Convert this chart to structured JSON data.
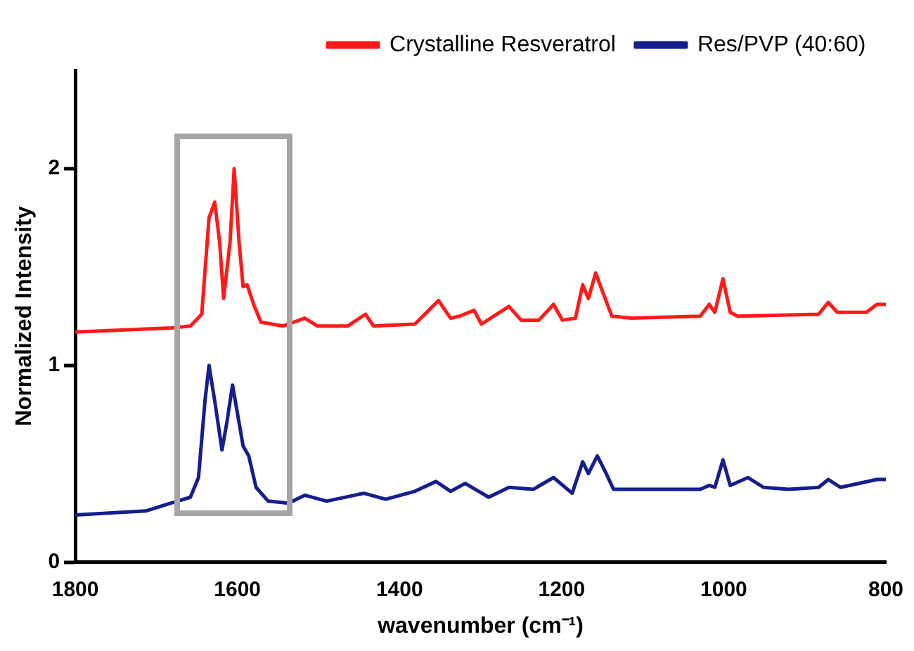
{
  "chart_data": {
    "type": "line",
    "xlabel": "wavenumber (cm⁻¹)",
    "ylabel": "Normalized Intensity",
    "xlim": [
      1800,
      800
    ],
    "xticks": [
      1800,
      1600,
      1400,
      1200,
      1000,
      800
    ],
    "ylim": [
      0,
      2.5
    ],
    "yticks": [
      0,
      1,
      2
    ],
    "grid": false,
    "legend": "top right",
    "marker": "none",
    "line_style": "solid",
    "series": [
      {
        "name": "Crystalline Resveratrol",
        "color": "#ff1a1a",
        "x": [
          1800,
          1682,
          1658,
          1644,
          1635,
          1628,
          1622,
          1617,
          1609,
          1604,
          1598,
          1593,
          1588,
          1580,
          1571,
          1544,
          1517,
          1501,
          1464,
          1442,
          1432,
          1381,
          1352,
          1337,
          1326,
          1308,
          1299,
          1265,
          1250,
          1228,
          1210,
          1199,
          1183,
          1174,
          1167,
          1158,
          1150,
          1138,
          1114,
          1029,
          1018,
          1011,
          1001,
          992,
          983,
          883,
          871,
          860,
          824,
          811,
          800
        ],
        "values": [
          1.17,
          1.19,
          1.2,
          1.26,
          1.75,
          1.83,
          1.63,
          1.34,
          1.63,
          2.0,
          1.63,
          1.4,
          1.41,
          1.31,
          1.22,
          1.2,
          1.24,
          1.2,
          1.2,
          1.26,
          1.2,
          1.21,
          1.33,
          1.24,
          1.25,
          1.28,
          1.21,
          1.3,
          1.23,
          1.23,
          1.31,
          1.23,
          1.24,
          1.41,
          1.34,
          1.47,
          1.38,
          1.25,
          1.24,
          1.25,
          1.31,
          1.27,
          1.44,
          1.27,
          1.25,
          1.26,
          1.32,
          1.27,
          1.27,
          1.31,
          1.31
        ]
      },
      {
        "name": "Res/PVP (40:60)",
        "color": "#141e8c",
        "x": [
          1800,
          1713,
          1682,
          1658,
          1648,
          1640,
          1635,
          1628,
          1619,
          1613,
          1606,
          1598,
          1593,
          1586,
          1577,
          1562,
          1537,
          1517,
          1490,
          1444,
          1417,
          1381,
          1355,
          1337,
          1319,
          1290,
          1265,
          1235,
          1210,
          1187,
          1174,
          1167,
          1156,
          1145,
          1136,
          1029,
          1018,
          1011,
          1001,
          992,
          970,
          951,
          920,
          883,
          871,
          856,
          811,
          800
        ],
        "values": [
          0.24,
          0.26,
          0.3,
          0.33,
          0.43,
          0.82,
          1.0,
          0.82,
          0.57,
          0.71,
          0.9,
          0.71,
          0.59,
          0.54,
          0.38,
          0.31,
          0.3,
          0.34,
          0.31,
          0.35,
          0.32,
          0.36,
          0.41,
          0.36,
          0.4,
          0.33,
          0.38,
          0.37,
          0.43,
          0.35,
          0.51,
          0.45,
          0.54,
          0.45,
          0.37,
          0.37,
          0.39,
          0.38,
          0.52,
          0.39,
          0.43,
          0.38,
          0.37,
          0.38,
          0.42,
          0.38,
          0.42,
          0.42
        ]
      }
    ]
  }
}
